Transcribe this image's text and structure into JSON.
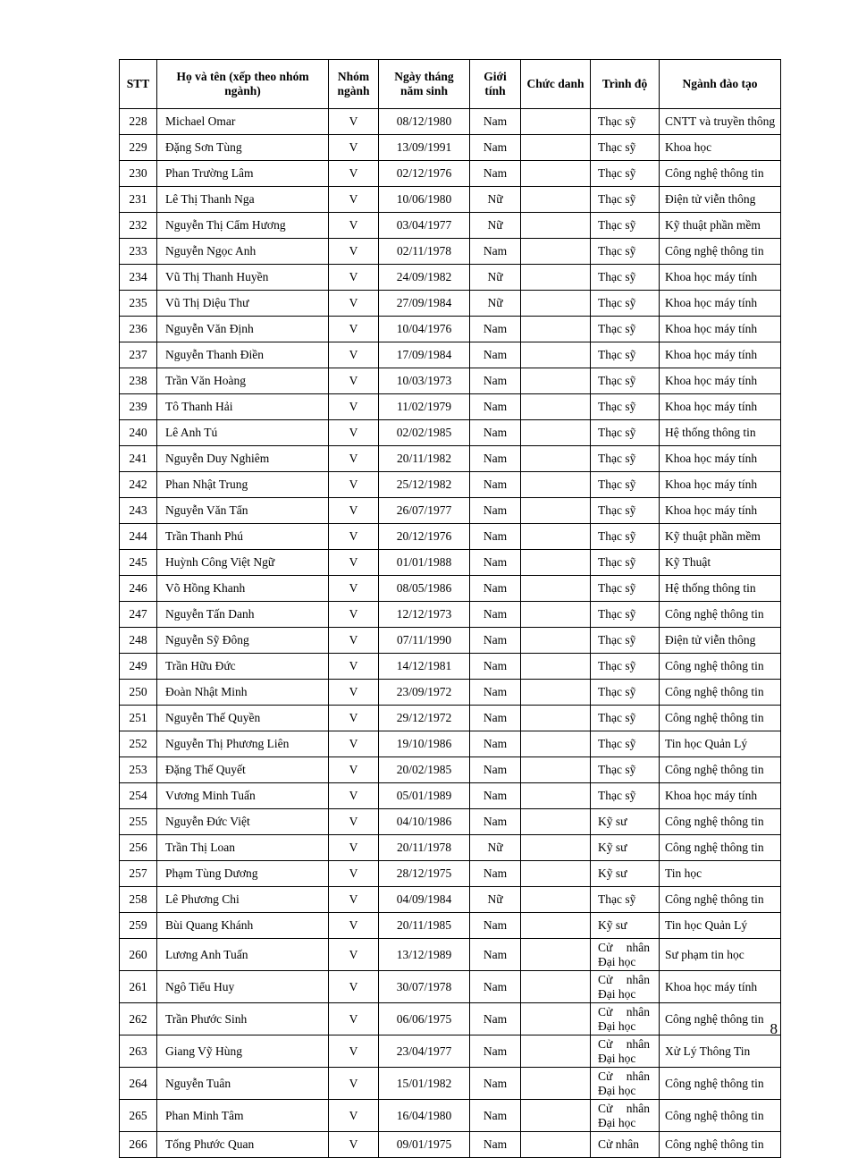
{
  "page": {
    "number": "8"
  },
  "table": {
    "headers": [
      "STT",
      "Họ và tên (xếp theo nhóm ngành)",
      "Nhóm ngành",
      "Ngày tháng năm sinh",
      "Giới tính",
      "Chức danh",
      "Trình độ",
      "Ngành đào tạo"
    ],
    "rows": [
      [
        "228",
        "Michael Omar",
        "V",
        "08/12/1980",
        "Nam",
        "",
        "Thạc sỹ",
        "CNTT và truyền thông"
      ],
      [
        "229",
        "Đặng Sơn Tùng",
        "V",
        "13/09/1991",
        "Nam",
        "",
        "Thạc sỹ",
        "Khoa học"
      ],
      [
        "230",
        "Phan Trường Lâm",
        "V",
        "02/12/1976",
        "Nam",
        "",
        "Thạc sỹ",
        "Công nghệ thông tin"
      ],
      [
        "231",
        "Lê Thị Thanh Nga",
        "V",
        "10/06/1980",
        "Nữ",
        "",
        "Thạc sỹ",
        "Điện tử viễn thông"
      ],
      [
        "232",
        "Nguyễn Thị Cẩm Hương",
        "V",
        "03/04/1977",
        "Nữ",
        "",
        "Thạc sỹ",
        "Kỹ thuật phần mềm"
      ],
      [
        "233",
        "Nguyễn Ngọc Anh",
        "V",
        "02/11/1978",
        "Nam",
        "",
        "Thạc sỹ",
        "Công nghệ thông tin"
      ],
      [
        "234",
        "Vũ Thị Thanh Huyền",
        "V",
        "24/09/1982",
        "Nữ",
        "",
        "Thạc sỹ",
        "Khoa học máy tính"
      ],
      [
        "235",
        "Vũ Thị Diệu Thư",
        "V",
        "27/09/1984",
        "Nữ",
        "",
        "Thạc sỹ",
        "Khoa học máy tính"
      ],
      [
        "236",
        "Nguyễn Văn Định",
        "V",
        "10/04/1976",
        "Nam",
        "",
        "Thạc sỹ",
        "Khoa học máy tính"
      ],
      [
        "237",
        "Nguyễn Thanh Điền",
        "V",
        "17/09/1984",
        "Nam",
        "",
        "Thạc sỹ",
        "Khoa học máy tính"
      ],
      [
        "238",
        "Trần Văn Hoàng",
        "V",
        "10/03/1973",
        "Nam",
        "",
        "Thạc sỹ",
        "Khoa học máy tính"
      ],
      [
        "239",
        "Tô Thanh Hải",
        "V",
        "11/02/1979",
        "Nam",
        "",
        "Thạc sỹ",
        "Khoa học máy tính"
      ],
      [
        "240",
        "Lê Anh Tú",
        "V",
        "02/02/1985",
        "Nam",
        "",
        "Thạc sỹ",
        "Hệ thống thông tin"
      ],
      [
        "241",
        "Nguyễn Duy Nghiêm",
        "V",
        "20/11/1982",
        "Nam",
        "",
        "Thạc sỹ",
        "Khoa học máy tính"
      ],
      [
        "242",
        "Phan Nhật Trung",
        "V",
        "25/12/1982",
        "Nam",
        "",
        "Thạc sỹ",
        "Khoa học máy tính"
      ],
      [
        "243",
        "Nguyễn Văn Tẩn",
        "V",
        "26/07/1977",
        "Nam",
        "",
        "Thạc sỹ",
        "Khoa học máy tính"
      ],
      [
        "244",
        "Trần Thanh Phú",
        "V",
        "20/12/1976",
        "Nam",
        "",
        "Thạc sỹ",
        "Kỹ thuật phần mềm"
      ],
      [
        "245",
        "Huỳnh Công Việt Ngữ",
        "V",
        "01/01/1988",
        "Nam",
        "",
        "Thạc sỹ",
        "Kỹ Thuật"
      ],
      [
        "246",
        "Võ Hồng Khanh",
        "V",
        "08/05/1986",
        "Nam",
        "",
        "Thạc sỹ",
        "Hệ thống thông tin"
      ],
      [
        "247",
        "Nguyễn Tấn Danh",
        "V",
        "12/12/1973",
        "Nam",
        "",
        "Thạc sỹ",
        "Công nghệ thông tin"
      ],
      [
        "248",
        "Nguyễn Sỹ Đông",
        "V",
        "07/11/1990",
        "Nam",
        "",
        "Thạc sỹ",
        "Điện tử viễn thông"
      ],
      [
        "249",
        "Trần Hữu Đức",
        "V",
        "14/12/1981",
        "Nam",
        "",
        "Thạc sỹ",
        "Công nghệ thông tin"
      ],
      [
        "250",
        "Đoàn Nhật Minh",
        "V",
        "23/09/1972",
        "Nam",
        "",
        "Thạc sỹ",
        "Công nghệ thông tin"
      ],
      [
        "251",
        "Nguyễn Thế Quyền",
        "V",
        "29/12/1972",
        "Nam",
        "",
        "Thạc sỹ",
        "Công nghệ thông tin"
      ],
      [
        "252",
        "Nguyễn Thị Phương Liên",
        "V",
        "19/10/1986",
        "Nam",
        "",
        "Thạc sỹ",
        "Tin học Quản Lý"
      ],
      [
        "253",
        "Đặng Thế Quyết",
        "V",
        "20/02/1985",
        "Nam",
        "",
        "Thạc sỹ",
        "Công nghệ thông tin"
      ],
      [
        "254",
        "Vương Minh Tuấn",
        "V",
        "05/01/1989",
        "Nam",
        "",
        "Thạc sỹ",
        "Khoa học máy tính"
      ],
      [
        "255",
        "Nguyễn Đức Việt",
        "V",
        "04/10/1986",
        "Nam",
        "",
        "Kỹ sư",
        "Công nghệ thông tin"
      ],
      [
        "256",
        "Trần Thị Loan",
        "V",
        "20/11/1978",
        "Nữ",
        "",
        "Kỹ sư",
        "Công nghệ thông tin"
      ],
      [
        "257",
        "Phạm Tùng Dương",
        "V",
        "28/12/1975",
        "Nam",
        "",
        "Kỹ sư",
        "Tin học"
      ],
      [
        "258",
        "Lê Phương Chi",
        "V",
        "04/09/1984",
        "Nữ",
        "",
        "Thạc sỹ",
        "Công nghệ thông tin"
      ],
      [
        "259",
        "Bùi Quang Khánh",
        "V",
        "20/11/1985",
        "Nam",
        "",
        "Kỹ sư",
        "Tin học Quản Lý"
      ],
      [
        "260",
        "Lương Anh Tuấn",
        "V",
        "13/12/1989",
        "Nam",
        "",
        "Cử nhân Đại học",
        "Sư phạm tin học"
      ],
      [
        "261",
        "Ngô Tiểu Huy",
        "V",
        "30/07/1978",
        "Nam",
        "",
        "Cử nhân Đại học",
        "Khoa học máy tính"
      ],
      [
        "262",
        "Trần Phước Sinh",
        "V",
        "06/06/1975",
        "Nam",
        "",
        "Cử nhân Đại học",
        "Công nghệ thông tin"
      ],
      [
        "263",
        "Giang Vỹ Hùng",
        "V",
        "23/04/1977",
        "Nam",
        "",
        "Cử nhân Đại học",
        "Xử Lý Thông Tin"
      ],
      [
        "264",
        "Nguyễn Tuân",
        "V",
        "15/01/1982",
        "Nam",
        "",
        "Cử nhân Đại học",
        "Công nghệ thông tin"
      ],
      [
        "265",
        "Phan Minh Tâm",
        "V",
        "16/04/1980",
        "Nam",
        "",
        "Cử nhân Đại học",
        "Công nghệ thông tin"
      ],
      [
        "266",
        "Tống Phước Quan",
        "V",
        "09/01/1975",
        "Nam",
        "",
        "Cử nhân",
        "Công nghệ thông tin"
      ]
    ]
  }
}
